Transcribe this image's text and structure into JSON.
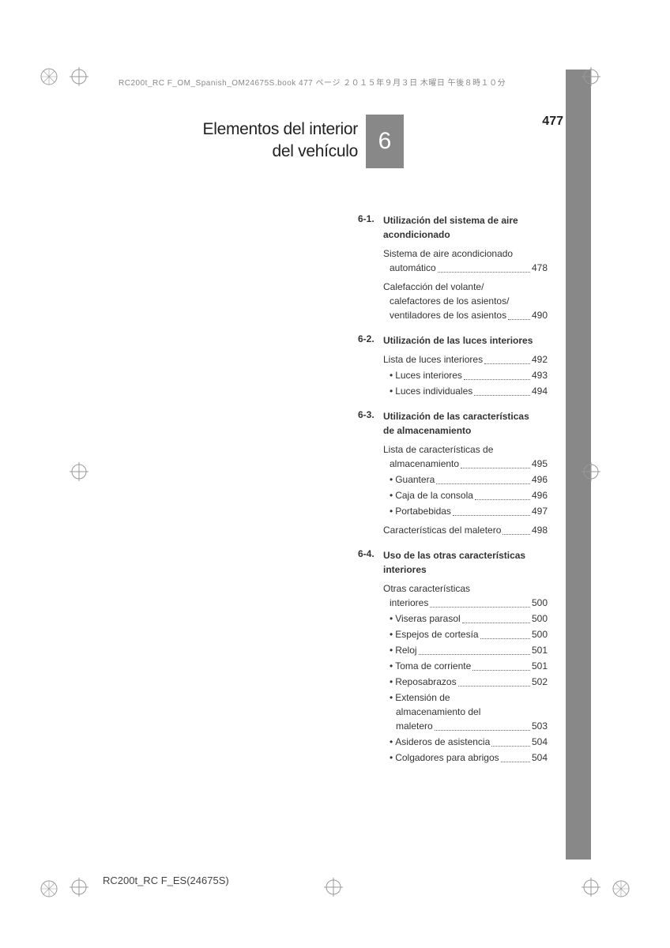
{
  "header": {
    "fileinfo": "RC200t_RC F_OM_Spanish_OM24675S.book  477 ページ  ２０１５年９月３日  木曜日  午後８時１０分"
  },
  "pageNumber": "477",
  "chapter": {
    "titleLine1": "Elementos del interior",
    "titleLine2": "del vehículo",
    "number": "6"
  },
  "sections": [
    {
      "num": "6-1.",
      "title": "Utilización del sistema de aire acondicionado",
      "entries": [
        {
          "type": "multi",
          "lines": [
            "Sistema de aire acondicionado"
          ],
          "last": "automático",
          "page": "478"
        },
        {
          "type": "multi",
          "lines": [
            "Calefacción del volante/",
            "calefactores de los asientos/"
          ],
          "last": "ventiladores de los asientos",
          "page": "490"
        }
      ]
    },
    {
      "num": "6-2.",
      "title": "Utilización de las luces interiores",
      "entries": [
        {
          "type": "single",
          "text": "Lista de luces interiores",
          "page": "492"
        },
        {
          "type": "sub",
          "text": "Luces interiores",
          "page": "493"
        },
        {
          "type": "sub",
          "text": "Luces individuales",
          "page": "494"
        }
      ]
    },
    {
      "num": "6-3.",
      "title": "Utilización de las características de almacenamiento",
      "entries": [
        {
          "type": "multi",
          "lines": [
            "Lista de características de"
          ],
          "last": "almacenamiento",
          "page": "495"
        },
        {
          "type": "sub",
          "text": "Guantera",
          "page": "496"
        },
        {
          "type": "sub",
          "text": "Caja de la consola",
          "page": "496"
        },
        {
          "type": "sub",
          "text": "Portabebidas",
          "page": "497"
        },
        {
          "type": "single",
          "text": "Características del maletero",
          "page": "498"
        }
      ]
    },
    {
      "num": "6-4.",
      "title": "Uso de las otras características interiores",
      "entries": [
        {
          "type": "multi",
          "lines": [
            "Otras características"
          ],
          "last": "interiores",
          "page": "500"
        },
        {
          "type": "sub",
          "text": "Viseras parasol",
          "page": "500"
        },
        {
          "type": "sub",
          "text": "Espejos de cortesía",
          "page": "500"
        },
        {
          "type": "sub",
          "text": "Reloj",
          "page": "501"
        },
        {
          "type": "sub",
          "text": "Toma de corriente",
          "page": "501"
        },
        {
          "type": "sub",
          "text": "Reposabrazos",
          "page": "502"
        },
        {
          "type": "submulti",
          "lines": [
            "Extensión de",
            "almacenamiento del"
          ],
          "last": "maletero",
          "page": "503"
        },
        {
          "type": "sub",
          "text": "Asideros de asistencia",
          "page": "504"
        },
        {
          "type": "sub",
          "text": "Colgadores para abrigos",
          "page": "504"
        }
      ]
    }
  ],
  "footer": {
    "code": "RC200t_RC F_ES(24675S)"
  }
}
